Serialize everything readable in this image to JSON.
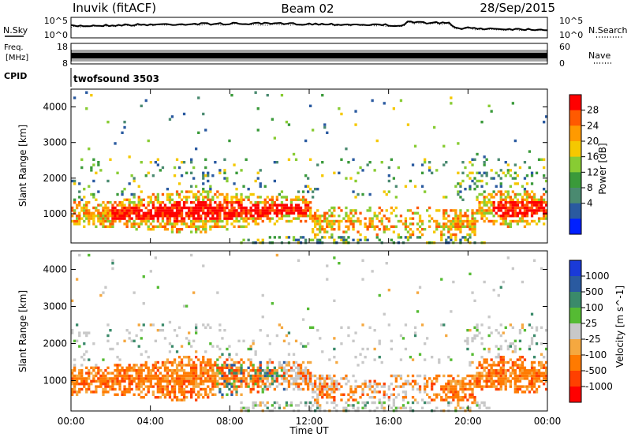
{
  "header": {
    "station": "Inuvik (fitACF)",
    "beam": "Beam 02",
    "date": "28/Sep/2015"
  },
  "noise_panel": {
    "left_label": "N.Sky",
    "right_label": "N.Search",
    "left_ticks": [
      "10^5",
      "10^0"
    ],
    "right_ticks": [
      "10^5",
      "10^0"
    ]
  },
  "freq_panel": {
    "left_label_1": "Freq.",
    "left_label_2": "[MHz]",
    "left_ticks": [
      "18",
      "8"
    ],
    "right_label": "Nave",
    "right_ticks": [
      "60",
      "0"
    ],
    "cpid_label": "CPID",
    "cpid_value": "twofsound 3503"
  },
  "chart_data": [
    {
      "type": "heatmap",
      "name": "power",
      "ylabel": "Slant Range [km]",
      "colorbar_label": "Power [dB]",
      "colorbar_ticks": [
        "28",
        "24",
        "20",
        "16",
        "12",
        "8",
        "4"
      ],
      "colorbar_colors": [
        "#ff0000",
        "#ff5a00",
        "#ff9a00",
        "#f5c800",
        "#88cc33",
        "#3a9a3a",
        "#4a8a70",
        "#2a5aa0",
        "#0020ff"
      ],
      "yticks": [
        "4000",
        "3000",
        "2000",
        "1000"
      ],
      "ylim": [
        180,
        4500
      ]
    },
    {
      "type": "heatmap",
      "name": "velocity",
      "ylabel": "Slant Range [km]",
      "colorbar_label": "Velocity [m s^-1]",
      "colorbar_ticks": [
        "1000",
        "500",
        "100",
        "25",
        "-25",
        "-100",
        "-500",
        "-1000"
      ],
      "colorbar_colors": [
        "#1a3ad8",
        "#2a5aa0",
        "#3a8a6a",
        "#55bb33",
        "#c8c8c8",
        "#f5a840",
        "#ff7a00",
        "#ff4000",
        "#ff0000"
      ],
      "yticks": [
        "4000",
        "3000",
        "2000",
        "1000"
      ],
      "ylim": [
        180,
        4500
      ]
    }
  ],
  "xaxis": {
    "ticks": [
      "00:00",
      "04:00",
      "08:00",
      "12:00",
      "16:00",
      "20:00",
      "00:00"
    ],
    "label": "Time UT"
  }
}
